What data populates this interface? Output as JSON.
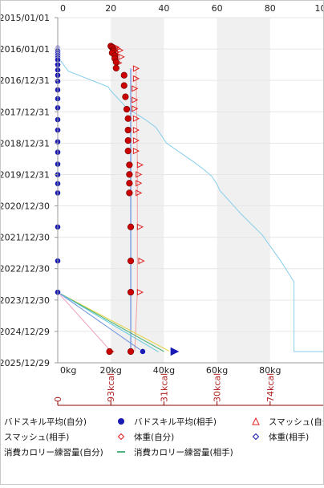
{
  "chart_data": {
    "type": "scatter",
    "y_axis": {
      "type": "date",
      "range": [
        "2015-01-01",
        "2025-12-29"
      ],
      "tick_labels": [
        "2015/01/01",
        "2016/01/01",
        "2016/12/31",
        "2017/12/31",
        "2018/12/31",
        "2019/12/31",
        "2020/12/30",
        "2021/12/30",
        "2022/12/30",
        "2023/12/30",
        "2024/12/29",
        "2025/12/29"
      ]
    },
    "x_axis_top": {
      "range": [
        0,
        100
      ],
      "tick_labels": [
        "0",
        "20",
        "40",
        "60",
        "80",
        "100"
      ]
    },
    "x_axis_bottom": {
      "unit": "kg",
      "range": [
        0,
        100
      ],
      "tick_labels": [
        "0kg",
        "20kg",
        "40kg",
        "60kg",
        "80kg"
      ]
    },
    "x_axis_calorie": {
      "tick_labels": [
        "0",
        "93kcal",
        "31kcal",
        "30kcal",
        "74kcal"
      ]
    },
    "shaded_bands": [
      [
        20,
        40
      ],
      [
        60,
        80
      ]
    ],
    "legend": {
      "entries": [
        {
          "label": "バドスキル平均(自分)",
          "symbol": "none"
        },
        {
          "label": "バドスキル平均(相手)",
          "symbol": "circle",
          "color": "#1a1ab4"
        },
        {
          "label": "スマッシュ(自分)",
          "symbol": "triangle-up",
          "color": "#e02020"
        },
        {
          "label": "スマッシュ(相手)",
          "symbol": "none"
        },
        {
          "label": "体重(自分)",
          "symbol": "diamond",
          "color": "#e02020"
        },
        {
          "label": "体重(相手)",
          "symbol": "diamond",
          "color": "#1a1ab4"
        },
        {
          "label": "消費カロリー練習量(自分)",
          "symbol": "none"
        },
        {
          "label": "消費カロリー練習量(相手)",
          "symbol": "line",
          "color": "#20a060"
        }
      ]
    },
    "series": [
      {
        "name": "バドスキル平均(相手)",
        "marker": "circle",
        "color": "#1a1ab4",
        "points": [
          [
            "2015-12-20",
            0
          ],
          [
            "2015-12-29",
            0
          ],
          [
            "2016-01-08",
            0
          ],
          [
            "2016-01-18",
            0
          ],
          [
            "2016-01-28",
            0
          ],
          [
            "2016-02-20",
            0
          ],
          [
            "2016-03-15",
            0
          ],
          [
            "2016-04-10",
            0
          ],
          [
            "2016-05-05",
            0
          ],
          [
            "2016-07-01",
            0
          ],
          [
            "2016-09-01",
            0
          ],
          [
            "2016-11-01",
            0
          ],
          [
            "2017-01-10",
            0
          ],
          [
            "2017-04-20",
            0
          ],
          [
            "2017-08-01",
            0
          ],
          [
            "2017-11-15",
            0
          ],
          [
            "2018-04-01",
            0
          ],
          [
            "2018-08-01",
            0
          ],
          [
            "2018-12-15",
            0
          ],
          [
            "2019-04-15",
            0
          ],
          [
            "2019-09-01",
            0
          ],
          [
            "2020-01-01",
            0
          ],
          [
            "2020-04-15",
            0
          ],
          [
            "2020-08-01",
            0
          ],
          [
            "2021-09-01",
            0
          ],
          [
            "2022-10-01",
            0
          ],
          [
            "2023-09-30",
            0
          ],
          [
            "2025-08-20",
            32
          ]
        ]
      },
      {
        "name": "スマッシュ(自分)",
        "marker": "triangle-right",
        "color": "#e02020",
        "points": [
          [
            "2015-12-10",
            22
          ],
          [
            "2015-12-28",
            22.5
          ],
          [
            "2016-01-15",
            23.5
          ],
          [
            "2016-02-05",
            22
          ],
          [
            "2016-03-01",
            22
          ],
          [
            "2016-04-01",
            24
          ],
          [
            "2016-06-10",
            23
          ],
          [
            "2016-08-15",
            29.5
          ],
          [
            "2016-12-10",
            29.5
          ],
          [
            "2017-04-05",
            29
          ],
          [
            "2017-08-15",
            29
          ],
          [
            "2017-11-25",
            29
          ],
          [
            "2018-03-20",
            29.5
          ],
          [
            "2018-08-01",
            29.5
          ],
          [
            "2018-12-01",
            29.5
          ],
          [
            "2019-04-01",
            29.5
          ],
          [
            "2019-09-10",
            31
          ],
          [
            "2019-12-30",
            30.5
          ],
          [
            "2020-04-10",
            30.5
          ],
          [
            "2020-08-01",
            30.5
          ],
          [
            "2021-09-01",
            31
          ],
          [
            "2022-10-01",
            31.5
          ],
          [
            "2023-09-30",
            31
          ],
          [
            "2025-08-20",
            20
          ]
        ]
      },
      {
        "name": "体重(自分)",
        "marker": "ball",
        "color": "#cc0000",
        "points": [
          [
            "2015-11-28",
            20
          ],
          [
            "2015-12-15",
            20.5
          ],
          [
            "2016-01-05",
            21
          ],
          [
            "2016-01-25",
            21
          ],
          [
            "2016-02-15",
            20.5
          ],
          [
            "2016-03-20",
            21.5
          ],
          [
            "2016-04-20",
            21.5
          ],
          [
            "2016-06-01",
            22
          ],
          [
            "2016-08-10",
            22
          ],
          [
            "2016-11-01",
            25
          ],
          [
            "2017-03-01",
            25
          ],
          [
            "2017-07-10",
            25.5
          ],
          [
            "2017-12-01",
            26
          ],
          [
            "2018-03-20",
            26.5
          ],
          [
            "2018-08-01",
            26.5
          ],
          [
            "2018-12-01",
            26.5
          ],
          [
            "2019-04-01",
            26.5
          ],
          [
            "2019-09-10",
            27
          ],
          [
            "2019-12-30",
            27
          ],
          [
            "2020-04-10",
            27
          ],
          [
            "2020-08-01",
            27
          ],
          [
            "2021-09-01",
            27.5
          ],
          [
            "2022-10-01",
            27.5
          ],
          [
            "2023-09-30",
            27.5
          ],
          [
            "2025-08-20",
            19.5
          ],
          [
            "2025-08-20",
            27.5
          ]
        ]
      },
      {
        "name": "体重(相手)",
        "marker": "triangle-right",
        "color": "#1a1ab4",
        "points": [
          [
            "2025-08-20",
            44
          ]
        ]
      }
    ],
    "lines": [
      {
        "name": "sky-line",
        "color": "#87ceeb",
        "points": [
          [
            "2016-04-01",
            0
          ],
          [
            "2016-09-15",
            4
          ],
          [
            "2017-03-15",
            19
          ],
          [
            "2017-05-01",
            20
          ],
          [
            "2017-11-15",
            26
          ],
          [
            "2018-04-01",
            33
          ],
          [
            "2018-07-01",
            37
          ],
          [
            "2018-12-31",
            41
          ],
          [
            "2019-08-01",
            51
          ],
          [
            "2019-11-01",
            55
          ],
          [
            "2020-01-20",
            58
          ],
          [
            "2020-04-20",
            60
          ],
          [
            "2020-07-01",
            61
          ],
          [
            "2021-04-01",
            69
          ],
          [
            "2021-12-01",
            77
          ],
          [
            "2022-10-01",
            84
          ],
          [
            "2023-06-01",
            89
          ],
          [
            "2023-10-01",
            89
          ],
          [
            "2025-08-20",
            89
          ],
          [
            "2025-08-20",
            100
          ]
        ]
      },
      {
        "name": "blue-line",
        "color": "#4a7ad8",
        "points": [
          [
            "2016-08-15",
            27.5
          ],
          [
            "2023-12-15",
            27.5
          ],
          [
            "2025-08-20",
            27.5
          ]
        ]
      },
      {
        "name": "pink-line",
        "color": "#f0a0a0",
        "points": [
          [
            "2016-08-15",
            29.5
          ],
          [
            "2019-09-10",
            30
          ],
          [
            "2023-09-30",
            30
          ],
          [
            "2025-08-20",
            29
          ]
        ]
      },
      {
        "name": "yellow-line",
        "color": "#e8d040",
        "points": [
          [
            "2023-09-30",
            0
          ],
          [
            "2025-08-15",
            42
          ]
        ]
      },
      {
        "name": "green-line",
        "color": "#40b070",
        "points": [
          [
            "2023-09-30",
            0
          ],
          [
            "2025-08-20",
            40
          ]
        ]
      },
      {
        "name": "cyan-line",
        "color": "#60c8e0",
        "points": [
          [
            "2023-09-30",
            0
          ],
          [
            "2025-08-25",
            38
          ]
        ]
      },
      {
        "name": "pink-diagonal",
        "color": "#f0a0c0",
        "points": [
          [
            "2023-09-30",
            0
          ],
          [
            "2025-08-15",
            20
          ]
        ]
      },
      {
        "name": "blue-diagonal",
        "color": "#6a90e0",
        "points": [
          [
            "2023-09-30",
            0
          ],
          [
            "2025-08-20",
            32
          ]
        ]
      }
    ]
  }
}
